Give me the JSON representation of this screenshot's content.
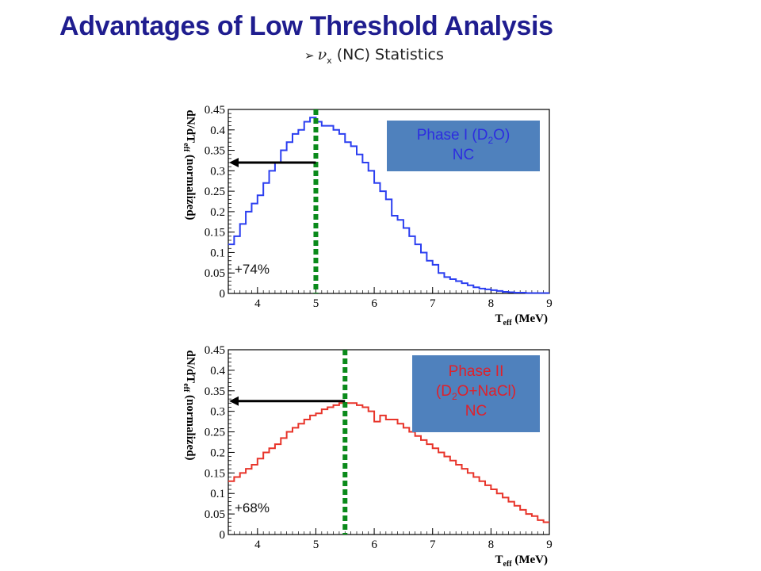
{
  "slide": {
    "title": "Advantages of Low Threshold Analysis",
    "bullet": {
      "symbol": "nu",
      "subscript": "x",
      "text": "(NC) Statistics"
    }
  },
  "chart_data": [
    {
      "type": "line",
      "xlabel": "T",
      "xlabel_subscript": "eff",
      "xlabel_unit": "(MeV)",
      "ylabel": "dN/dT",
      "ylabel_subscript": "eff",
      "ylabel_suffix": "(normalized)",
      "xlim": [
        3.5,
        9
      ],
      "ylim": [
        0,
        0.45
      ],
      "xticks": [
        "4",
        "5",
        "6",
        "7",
        "8",
        "9"
      ],
      "yticks": [
        "0",
        "0.05",
        "0.1",
        "0.15",
        "0.2",
        "0.25",
        "0.3",
        "0.35",
        "0.4",
        "0.45"
      ],
      "color": "#2b3ef0",
      "threshold_x": 5.0,
      "arrow_y": 0.32,
      "annotation": "+74%",
      "label_lines": [
        "Phase I (D",
        "2",
        "O)",
        "NC"
      ],
      "x": [
        3.5,
        3.6,
        3.7,
        3.8,
        3.9,
        4.0,
        4.1,
        4.2,
        4.3,
        4.4,
        4.5,
        4.6,
        4.7,
        4.8,
        4.9,
        5.0,
        5.1,
        5.2,
        5.3,
        5.4,
        5.5,
        5.6,
        5.7,
        5.8,
        5.9,
        6.0,
        6.1,
        6.2,
        6.3,
        6.4,
        6.5,
        6.6,
        6.7,
        6.8,
        6.9,
        7.0,
        7.1,
        7.2,
        7.3,
        7.4,
        7.5,
        7.6,
        7.7,
        7.8,
        7.9,
        8.0,
        8.1,
        8.2,
        8.3,
        8.4,
        8.5,
        8.6,
        8.7,
        8.8,
        8.9
      ],
      "y": [
        0.12,
        0.14,
        0.17,
        0.2,
        0.22,
        0.24,
        0.27,
        0.3,
        0.32,
        0.35,
        0.37,
        0.39,
        0.4,
        0.42,
        0.43,
        0.42,
        0.41,
        0.41,
        0.4,
        0.39,
        0.37,
        0.36,
        0.34,
        0.32,
        0.3,
        0.27,
        0.25,
        0.23,
        0.19,
        0.18,
        0.16,
        0.14,
        0.12,
        0.1,
        0.08,
        0.07,
        0.05,
        0.04,
        0.035,
        0.03,
        0.025,
        0.02,
        0.015,
        0.012,
        0.01,
        0.008,
        0.006,
        0.004,
        0.003,
        0.002,
        0.002,
        0.001,
        0.001,
        0.001,
        0.001
      ]
    },
    {
      "type": "line",
      "xlabel": "T",
      "xlabel_subscript": "eff",
      "xlabel_unit": "(MeV)",
      "ylabel": "dN/dT",
      "ylabel_subscript": "eff",
      "ylabel_suffix": "(normalized)",
      "xlim": [
        3.5,
        9
      ],
      "ylim": [
        0,
        0.45
      ],
      "xticks": [
        "4",
        "5",
        "6",
        "7",
        "8",
        "9"
      ],
      "yticks": [
        "0",
        "0.05",
        "0.1",
        "0.15",
        "0.2",
        "0.25",
        "0.3",
        "0.35",
        "0.4",
        "0.45"
      ],
      "color": "#e8342a",
      "threshold_x": 5.5,
      "arrow_y": 0.325,
      "annotation": "+68%",
      "label_lines": [
        "Phase II",
        "(D",
        "2",
        "O+NaCl)",
        "NC"
      ],
      "x": [
        3.5,
        3.6,
        3.7,
        3.8,
        3.9,
        4.0,
        4.1,
        4.2,
        4.3,
        4.4,
        4.5,
        4.6,
        4.7,
        4.8,
        4.9,
        5.0,
        5.1,
        5.2,
        5.3,
        5.4,
        5.5,
        5.6,
        5.7,
        5.8,
        5.9,
        6.0,
        6.1,
        6.2,
        6.3,
        6.4,
        6.5,
        6.6,
        6.7,
        6.8,
        6.9,
        7.0,
        7.1,
        7.2,
        7.3,
        7.4,
        7.5,
        7.6,
        7.7,
        7.8,
        7.9,
        8.0,
        8.1,
        8.2,
        8.3,
        8.4,
        8.5,
        8.6,
        8.7,
        8.8,
        8.9
      ],
      "y": [
        0.13,
        0.14,
        0.15,
        0.16,
        0.17,
        0.185,
        0.2,
        0.21,
        0.22,
        0.235,
        0.25,
        0.26,
        0.27,
        0.28,
        0.29,
        0.295,
        0.305,
        0.31,
        0.315,
        0.32,
        0.32,
        0.32,
        0.315,
        0.31,
        0.3,
        0.275,
        0.29,
        0.28,
        0.28,
        0.27,
        0.26,
        0.25,
        0.24,
        0.23,
        0.22,
        0.21,
        0.2,
        0.19,
        0.18,
        0.17,
        0.16,
        0.15,
        0.14,
        0.13,
        0.12,
        0.11,
        0.1,
        0.09,
        0.08,
        0.07,
        0.06,
        0.05,
        0.045,
        0.035,
        0.03
      ]
    }
  ]
}
